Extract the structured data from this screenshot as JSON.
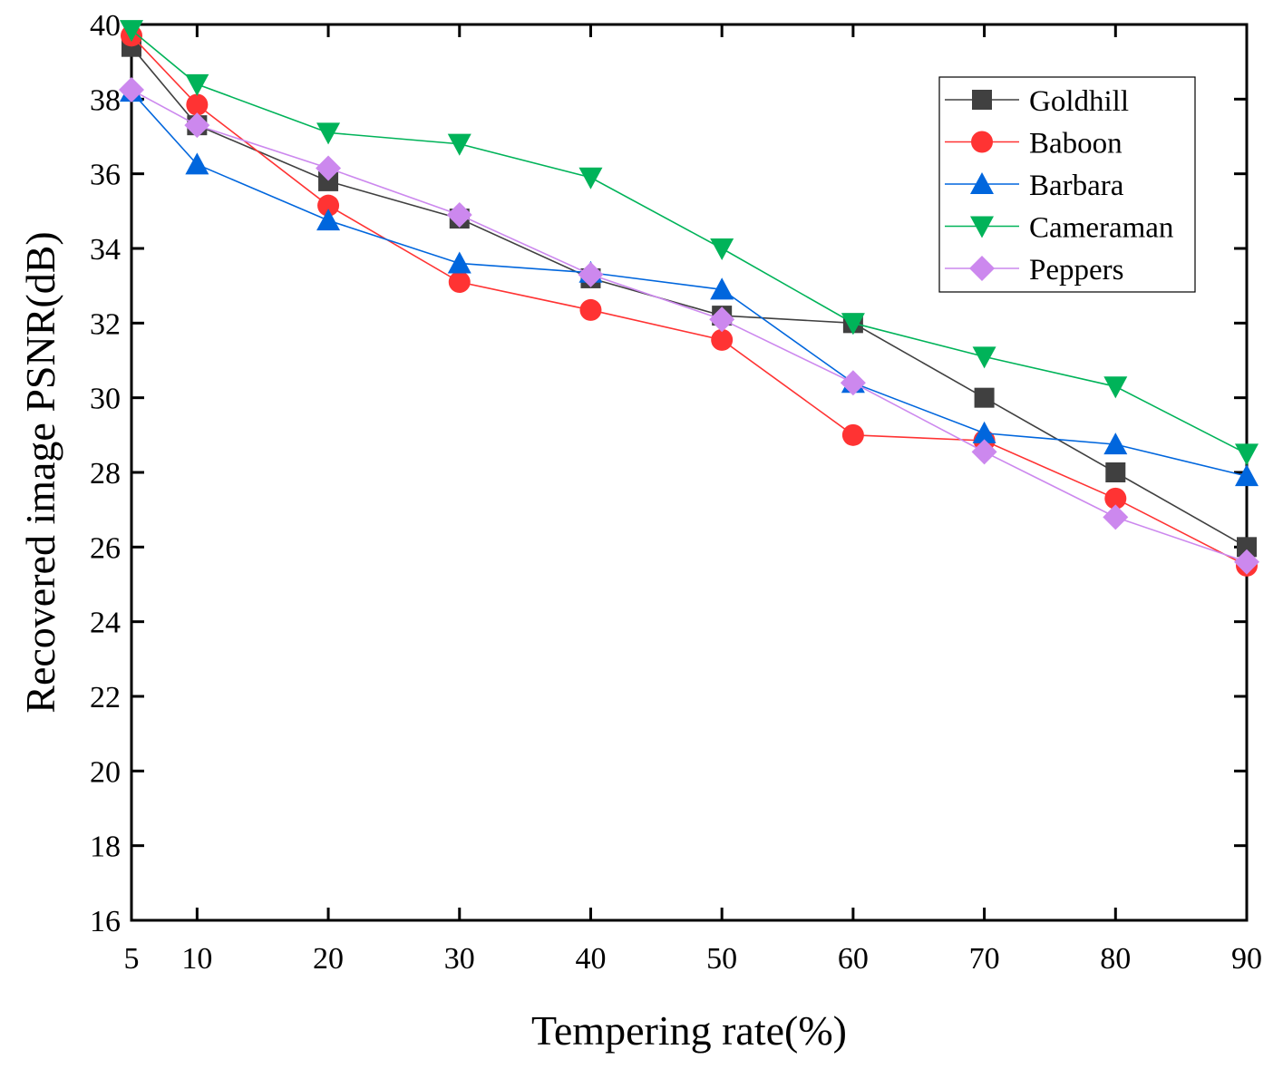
{
  "chart_data": {
    "type": "line",
    "title": "",
    "xlabel": "Tempering rate(%)",
    "ylabel": "Recovered image PSNR(dB)",
    "x": [
      5,
      10,
      20,
      30,
      40,
      50,
      60,
      70,
      80,
      90
    ],
    "xticks": [
      5,
      10,
      20,
      30,
      40,
      50,
      60,
      70,
      80,
      90
    ],
    "yticks": [
      16,
      18,
      20,
      22,
      24,
      26,
      28,
      30,
      32,
      34,
      36,
      38,
      40
    ],
    "xlim": [
      5,
      90
    ],
    "ylim": [
      16,
      40
    ],
    "grid": false,
    "legend_position": "top-right",
    "series": [
      {
        "name": "Goldhill",
        "marker": "square",
        "color": "#404040",
        "values": [
          39.4,
          37.3,
          35.8,
          34.8,
          33.2,
          32.2,
          32.0,
          30.0,
          28.0,
          26.0
        ]
      },
      {
        "name": "Baboon",
        "marker": "circle",
        "color": "#ff3333",
        "values": [
          39.7,
          37.85,
          35.15,
          33.1,
          32.35,
          31.55,
          29.0,
          28.85,
          27.3,
          25.5
        ]
      },
      {
        "name": "Barbara",
        "marker": "triangle-up",
        "color": "#0066dd",
        "values": [
          38.2,
          36.25,
          34.75,
          33.6,
          33.35,
          32.9,
          30.4,
          29.05,
          28.75,
          27.9
        ]
      },
      {
        "name": "Cameraman",
        "marker": "triangle-down",
        "color": "#00b359",
        "values": [
          39.85,
          38.4,
          37.1,
          36.8,
          35.9,
          34.0,
          32.0,
          31.1,
          30.3,
          28.5
        ]
      },
      {
        "name": "Peppers",
        "marker": "diamond",
        "color": "#cc88ee",
        "values": [
          38.25,
          37.3,
          36.15,
          34.9,
          33.3,
          32.1,
          30.4,
          28.55,
          26.8,
          25.6
        ]
      }
    ]
  }
}
